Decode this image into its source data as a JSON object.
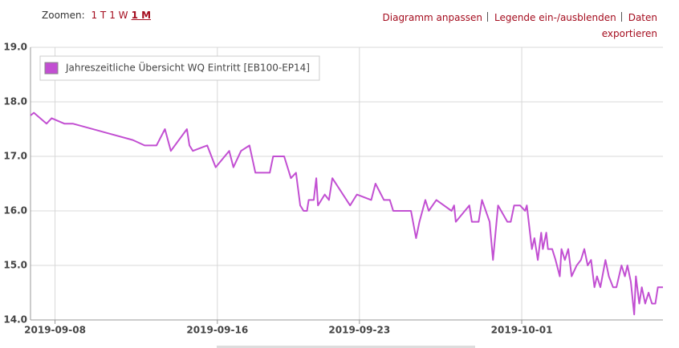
{
  "toolbar": {
    "zoom_label": "Zoomen:",
    "zoom_options": [
      "1 T",
      "1 W",
      "1 M"
    ],
    "active_zoom": "1 M",
    "actions": [
      "Diagramm anpassen",
      "Legende ein-/ausblenden",
      "Daten exportieren"
    ]
  },
  "chart_data": {
    "type": "line",
    "xlim": [
      "2019-09-06T19:00",
      "2019-10-07T23:00"
    ],
    "xticks": [
      "2019-09-08",
      "2019-09-16",
      "2019-09-23",
      "2019-10-01"
    ],
    "ylim": [
      14,
      19
    ],
    "yticks": [
      {
        "value": 14,
        "label": "14.0"
      },
      {
        "value": 15,
        "label": "15.0"
      },
      {
        "value": 16,
        "label": "16.0"
      },
      {
        "value": 17,
        "label": "17.0"
      },
      {
        "value": 18,
        "label": "18.0"
      },
      {
        "value": 19,
        "label": "19.0"
      }
    ],
    "grid": true,
    "legend": "top-left",
    "series": [
      {
        "name": "Jahreszeitliche Übersicht WQ Eintritt [EB100-EP14]",
        "color": "#c24fd2",
        "x": [
          "2019-09-06T19:00",
          "2019-09-06T23:00",
          "2019-09-07T14:00",
          "2019-09-07T20:00",
          "2019-09-08T11:00",
          "2019-09-08T21:00",
          "2019-09-11T20:00",
          "2019-09-12T10:00",
          "2019-09-13T00:00",
          "2019-09-13T10:00",
          "2019-09-13T17:00",
          "2019-09-14T12:00",
          "2019-09-14T15:00",
          "2019-09-14T19:00",
          "2019-09-15T12:00",
          "2019-09-15T22:00",
          "2019-09-16T14:00",
          "2019-09-16T19:00",
          "2019-09-17T04:00",
          "2019-09-17T14:00",
          "2019-09-17T21:00",
          "2019-09-18T14:00",
          "2019-09-18T18:00",
          "2019-09-19T07:00",
          "2019-09-19T15:00",
          "2019-09-19T21:00",
          "2019-09-20T02:00",
          "2019-09-20T06:00",
          "2019-09-20T10:00",
          "2019-09-20T12:00",
          "2019-09-20T18:00",
          "2019-09-20T21:00",
          "2019-09-20T23:00",
          "2019-09-21T07:00",
          "2019-09-21T12:00",
          "2019-09-21T16:00",
          "2019-09-22T13:00",
          "2019-09-22T21:00",
          "2019-09-23T14:00",
          "2019-09-23T19:00",
          "2019-09-24T05:00",
          "2019-09-24T12:00",
          "2019-09-24T16:00",
          "2019-09-25T13:00",
          "2019-09-25T19:00",
          "2019-09-25T23:00",
          "2019-09-26T06:00",
          "2019-09-26T10:00",
          "2019-09-26T19:00",
          "2019-09-27T13:00",
          "2019-09-27T16:00",
          "2019-09-27T18:00",
          "2019-09-28T10:00",
          "2019-09-28T13:00",
          "2019-09-28T21:00",
          "2019-09-29T01:00",
          "2019-09-29T10:00",
          "2019-09-29T14:00",
          "2019-09-29T20:00",
          "2019-09-30T07:00",
          "2019-09-30T11:00",
          "2019-09-30T15:00",
          "2019-09-30T22:00",
          "2019-10-01T04:00",
          "2019-10-01T06:00",
          "2019-10-01T12:00",
          "2019-10-01T15:00",
          "2019-10-01T19:00",
          "2019-10-01T23:00",
          "2019-10-02T01:00",
          "2019-10-02T05:00",
          "2019-10-02T07:00",
          "2019-10-02T12:00",
          "2019-10-02T16:00",
          "2019-10-02T21:00",
          "2019-10-02T23:00",
          "2019-10-03T03:00",
          "2019-10-03T07:00",
          "2019-10-03T11:00",
          "2019-10-03T17:00",
          "2019-10-03T22:00",
          "2019-10-04T02:00",
          "2019-10-04T06:00",
          "2019-10-04T10:00",
          "2019-10-04T14:00",
          "2019-10-04T17:00",
          "2019-10-04T21:00",
          "2019-10-05T03:00",
          "2019-10-05T07:00",
          "2019-10-05T12:00",
          "2019-10-05T16:00",
          "2019-10-05T22:00",
          "2019-10-06T02:00",
          "2019-10-06T05:00",
          "2019-10-06T09:00",
          "2019-10-06T13:00",
          "2019-10-06T15:00",
          "2019-10-06T19:00",
          "2019-10-06T22:00",
          "2019-10-07T02:00",
          "2019-10-07T06:00",
          "2019-10-07T10:00",
          "2019-10-07T14:00",
          "2019-10-07T17:00",
          "2019-10-07T23:00"
        ],
        "values": [
          17.75,
          17.8,
          17.6,
          17.7,
          17.6,
          17.6,
          17.3,
          17.2,
          17.2,
          17.5,
          17.1,
          17.5,
          17.2,
          17.1,
          17.2,
          16.8,
          17.1,
          16.8,
          17.1,
          17.2,
          16.7,
          16.7,
          17.0,
          17.0,
          16.6,
          16.7,
          16.1,
          16.0,
          16.0,
          16.2,
          16.2,
          16.6,
          16.1,
          16.3,
          16.2,
          16.6,
          16.1,
          16.3,
          16.2,
          16.5,
          16.2,
          16.2,
          16.0,
          16.0,
          15.5,
          15.8,
          16.2,
          16.0,
          16.2,
          16.0,
          16.1,
          15.8,
          16.1,
          15.8,
          15.8,
          16.2,
          15.8,
          15.1,
          16.1,
          15.8,
          15.8,
          16.1,
          16.1,
          16.0,
          16.1,
          15.3,
          15.5,
          15.1,
          15.6,
          15.3,
          15.6,
          15.3,
          15.3,
          15.1,
          14.8,
          15.3,
          15.1,
          15.3,
          14.8,
          15.0,
          15.1,
          15.3,
          15.0,
          15.1,
          14.6,
          14.8,
          14.6,
          15.1,
          14.8,
          14.6,
          14.6,
          15.0,
          14.8,
          15.0,
          14.7,
          14.1,
          14.8,
          14.3,
          14.6,
          14.3,
          14.5,
          14.3,
          14.3,
          14.6,
          14.6
        ]
      }
    ]
  }
}
